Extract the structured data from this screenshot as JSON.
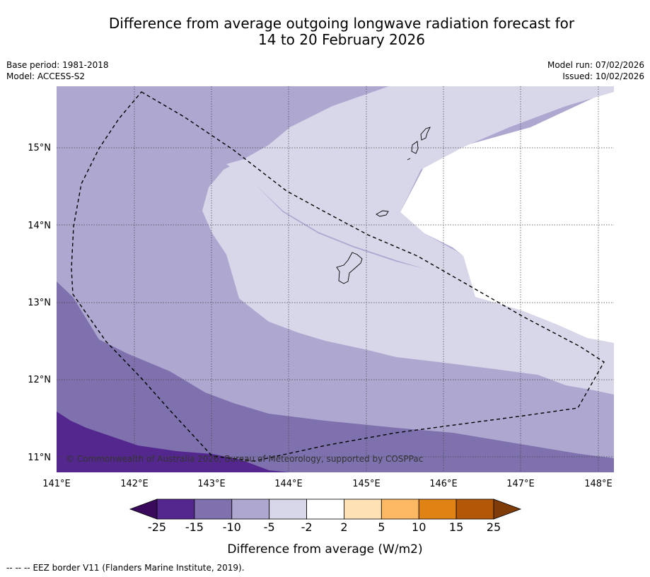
{
  "title": {
    "line1": "Difference from average outgoing longwave radiation forecast for",
    "line2": "14 to 20 February 2026"
  },
  "meta": {
    "base_period": "Base period: 1981-2018",
    "model": "Model: ACCESS-S2",
    "model_run": "Model run: 07/02/2026",
    "issued": "Issued: 10/02/2026"
  },
  "map": {
    "lon_ticks": [
      "141°E",
      "142°E",
      "143°E",
      "144°E",
      "145°E",
      "146°E",
      "147°E",
      "148°E"
    ],
    "lat_ticks": [
      "15°N",
      "14°N",
      "13°N",
      "12°N",
      "11°N"
    ],
    "copyright": "© Commonwealth of Australia 2026, Bureau of Meteorology, supported by COSPPac"
  },
  "colorbar": {
    "ticks": [
      "-25",
      "-15",
      "-10",
      "-5",
      "-2",
      "2",
      "5",
      "10",
      "15",
      "25"
    ],
    "colors": [
      "#3a0b5c",
      "#54278f",
      "#7e71ad",
      "#aea8d1",
      "#d7d7e9",
      "#ffffff",
      "#fee1b4",
      "#fdb863",
      "#e08214",
      "#b35806",
      "#7f3b08"
    ],
    "label": "Difference from average (W/m2)"
  },
  "legend": {
    "line_symbol": "--  --  --",
    "text": "EEZ border V11 (Flanders Marine Institute, 2019)."
  }
}
